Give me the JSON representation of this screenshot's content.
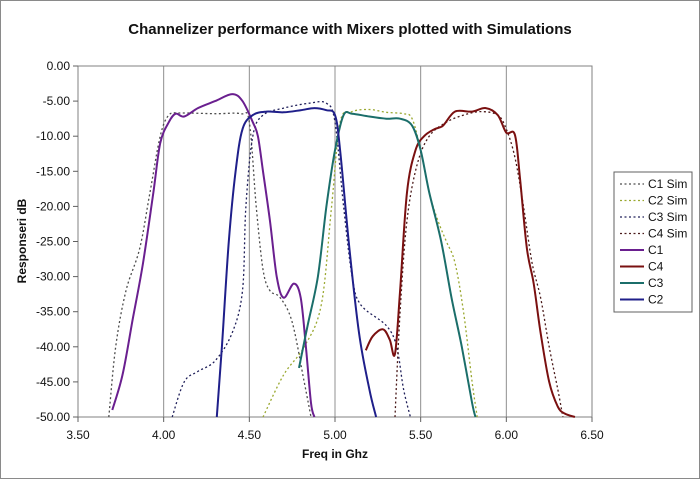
{
  "chart_data": {
    "type": "line",
    "title": "Channelizer performance with Mixers plotted with Simulations",
    "xlabel": "Freq in Ghz",
    "ylabel": "Responseri dB",
    "xlim": [
      3.5,
      6.5
    ],
    "ylim": [
      -50,
      0
    ],
    "x_ticks": [
      "3.50",
      "4.00",
      "4.50",
      "5.00",
      "5.50",
      "6.00",
      "6.50"
    ],
    "y_ticks": [
      "0.00",
      "-5.00",
      "-10.00",
      "-15.00",
      "-20.00",
      "-25.00",
      "-30.00",
      "-35.00",
      "-40.00",
      "-45.00",
      "-50.00"
    ],
    "grid": "vertical",
    "legend_position": "right",
    "series": [
      {
        "name": "C1 Sim",
        "color": "#4d4d4d",
        "dashed": true,
        "points": [
          [
            3.68,
            -50
          ],
          [
            3.72,
            -40
          ],
          [
            3.78,
            -32
          ],
          [
            3.86,
            -26
          ],
          [
            3.92,
            -18
          ],
          [
            3.98,
            -10
          ],
          [
            4.03,
            -7
          ],
          [
            4.1,
            -6.7
          ],
          [
            4.3,
            -6.8
          ],
          [
            4.45,
            -6.8
          ],
          [
            4.5,
            -8
          ],
          [
            4.54,
            -20
          ],
          [
            4.58,
            -29
          ],
          [
            4.62,
            -32
          ],
          [
            4.68,
            -33
          ],
          [
            4.75,
            -36.5
          ],
          [
            4.82,
            -45
          ],
          [
            4.86,
            -50
          ]
        ]
      },
      {
        "name": "C2 Sim",
        "color": "#9aa830",
        "dashed": true,
        "points": [
          [
            4.58,
            -50
          ],
          [
            4.7,
            -44
          ],
          [
            4.82,
            -40
          ],
          [
            4.92,
            -34
          ],
          [
            4.98,
            -20
          ],
          [
            5.03,
            -8
          ],
          [
            5.1,
            -6.5
          ],
          [
            5.2,
            -6.2
          ],
          [
            5.3,
            -6.6
          ],
          [
            5.4,
            -6.8
          ],
          [
            5.45,
            -7.5
          ],
          [
            5.5,
            -12
          ],
          [
            5.55,
            -18
          ],
          [
            5.6,
            -22
          ],
          [
            5.65,
            -25
          ],
          [
            5.7,
            -28
          ],
          [
            5.75,
            -35
          ],
          [
            5.8,
            -45
          ],
          [
            5.83,
            -50
          ]
        ]
      },
      {
        "name": "C3 Sim",
        "color": "#20205a",
        "dashed": true,
        "points": [
          [
            4.05,
            -50
          ],
          [
            4.12,
            -45
          ],
          [
            4.2,
            -43.5
          ],
          [
            4.3,
            -42
          ],
          [
            4.4,
            -38
          ],
          [
            4.46,
            -32
          ],
          [
            4.48,
            -20
          ],
          [
            4.52,
            -10
          ],
          [
            4.58,
            -7
          ],
          [
            4.7,
            -6
          ],
          [
            4.85,
            -5.3
          ],
          [
            4.95,
            -5.3
          ],
          [
            5.0,
            -8
          ],
          [
            5.05,
            -20
          ],
          [
            5.1,
            -30
          ],
          [
            5.15,
            -34
          ],
          [
            5.3,
            -37
          ],
          [
            5.36,
            -40
          ],
          [
            5.4,
            -46
          ],
          [
            5.44,
            -50
          ]
        ]
      },
      {
        "name": "C4 Sim",
        "color": "#4a1a1a",
        "dashed": true,
        "points": [
          [
            5.35,
            -50
          ],
          [
            5.38,
            -35
          ],
          [
            5.42,
            -22
          ],
          [
            5.48,
            -14
          ],
          [
            5.55,
            -10
          ],
          [
            5.65,
            -8
          ],
          [
            5.75,
            -7
          ],
          [
            5.85,
            -6.5
          ],
          [
            5.95,
            -7
          ],
          [
            6.0,
            -9
          ],
          [
            6.05,
            -13
          ],
          [
            6.1,
            -20
          ],
          [
            6.15,
            -28
          ],
          [
            6.2,
            -33
          ],
          [
            6.25,
            -40
          ],
          [
            6.3,
            -46
          ],
          [
            6.33,
            -50
          ]
        ]
      },
      {
        "name": "C1",
        "color": "#6a1f8f",
        "dashed": false,
        "points": [
          [
            3.7,
            -49
          ],
          [
            3.76,
            -44
          ],
          [
            3.82,
            -36
          ],
          [
            3.88,
            -28
          ],
          [
            3.94,
            -18
          ],
          [
            3.98,
            -11
          ],
          [
            4.03,
            -8
          ],
          [
            4.07,
            -6.8
          ],
          [
            4.12,
            -7.2
          ],
          [
            4.2,
            -6
          ],
          [
            4.3,
            -5
          ],
          [
            4.4,
            -4
          ],
          [
            4.46,
            -5
          ],
          [
            4.52,
            -8
          ],
          [
            4.55,
            -10
          ],
          [
            4.58,
            -15
          ],
          [
            4.62,
            -22
          ],
          [
            4.66,
            -30
          ],
          [
            4.7,
            -33
          ],
          [
            4.76,
            -31
          ],
          [
            4.8,
            -33
          ],
          [
            4.83,
            -40
          ],
          [
            4.86,
            -48
          ],
          [
            4.88,
            -50
          ]
        ]
      },
      {
        "name": "C4",
        "color": "#7a1010",
        "dashed": false,
        "points": [
          [
            5.18,
            -40.5
          ],
          [
            5.22,
            -38.5
          ],
          [
            5.28,
            -37.5
          ],
          [
            5.32,
            -39
          ],
          [
            5.35,
            -41
          ],
          [
            5.38,
            -32
          ],
          [
            5.42,
            -18
          ],
          [
            5.47,
            -12
          ],
          [
            5.52,
            -10
          ],
          [
            5.58,
            -9
          ],
          [
            5.63,
            -8.5
          ],
          [
            5.7,
            -6.5
          ],
          [
            5.8,
            -6.5
          ],
          [
            5.88,
            -6
          ],
          [
            5.95,
            -7
          ],
          [
            6.0,
            -9.5
          ],
          [
            6.05,
            -9.8
          ],
          [
            6.08,
            -16
          ],
          [
            6.12,
            -26
          ],
          [
            6.16,
            -31
          ],
          [
            6.2,
            -38
          ],
          [
            6.25,
            -45
          ],
          [
            6.3,
            -48.5
          ],
          [
            6.34,
            -49.5
          ],
          [
            6.4,
            -50
          ]
        ]
      },
      {
        "name": "C3",
        "color": "#1b6e6a",
        "dashed": false,
        "points": [
          [
            4.79,
            -43
          ],
          [
            4.84,
            -37
          ],
          [
            4.9,
            -30
          ],
          [
            4.95,
            -20
          ],
          [
            5.0,
            -12
          ],
          [
            5.05,
            -7
          ],
          [
            5.1,
            -6.8
          ],
          [
            5.2,
            -7.2
          ],
          [
            5.3,
            -7.5
          ],
          [
            5.38,
            -7.5
          ],
          [
            5.45,
            -8.5
          ],
          [
            5.5,
            -12
          ],
          [
            5.55,
            -18
          ],
          [
            5.62,
            -25
          ],
          [
            5.68,
            -33
          ],
          [
            5.74,
            -40
          ],
          [
            5.8,
            -48
          ],
          [
            5.82,
            -50
          ]
        ]
      },
      {
        "name": "C2",
        "color": "#1f1f8a",
        "dashed": false,
        "points": [
          [
            4.31,
            -50
          ],
          [
            4.34,
            -40
          ],
          [
            4.38,
            -25
          ],
          [
            4.42,
            -15
          ],
          [
            4.46,
            -9
          ],
          [
            4.52,
            -7
          ],
          [
            4.6,
            -6.5
          ],
          [
            4.7,
            -6.6
          ],
          [
            4.8,
            -6.3
          ],
          [
            4.88,
            -6
          ],
          [
            4.95,
            -6.3
          ],
          [
            5.0,
            -7
          ],
          [
            5.03,
            -12
          ],
          [
            5.08,
            -25
          ],
          [
            5.14,
            -38
          ],
          [
            5.2,
            -46
          ],
          [
            5.24,
            -50
          ]
        ]
      }
    ]
  }
}
